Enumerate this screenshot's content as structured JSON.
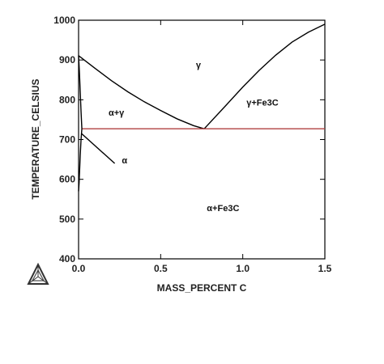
{
  "chart_data": {
    "type": "line",
    "xlabel": "MASS_PERCENT C",
    "ylabel": "TEMPERATURE_CELSIUS",
    "xlim": [
      0,
      1.5
    ],
    "ylim": [
      400,
      1000
    ],
    "x_ticks": [
      0.0,
      0.5,
      1.0,
      1.5
    ],
    "x_tick_labels": [
      "0.0",
      "0.5",
      "1.0",
      "1.5"
    ],
    "y_ticks": [
      400,
      500,
      600,
      700,
      800,
      900,
      1000
    ],
    "y_tick_labels": [
      "400",
      "500",
      "600",
      "700",
      "800",
      "900",
      "1000"
    ],
    "grid": false,
    "series": [
      {
        "color": "#000000",
        "x": [
          0.0,
          0.1,
          0.2,
          0.3,
          0.4,
          0.5,
          0.6,
          0.7,
          0.765
        ],
        "y": [
          911,
          879,
          848,
          820,
          795,
          773,
          752,
          735,
          727
        ]
      },
      {
        "color": "#000000",
        "x": [
          0.765,
          0.9,
          1.0,
          1.1,
          1.2,
          1.3,
          1.4,
          1.5
        ],
        "y": [
          727,
          787,
          832,
          874,
          912,
          945,
          970,
          990
        ]
      },
      {
        "color": "#b04040",
        "x": [
          0.02,
          1.5
        ],
        "y": [
          727,
          727
        ]
      },
      {
        "color": "#000000",
        "x": [
          0.0,
          0.005,
          0.01,
          0.015,
          0.02
        ],
        "y": [
          911,
          870,
          820,
          770,
          727
        ]
      },
      {
        "color": "#000000",
        "x": [
          0.02,
          0.015,
          0.01,
          0.006,
          0.003,
          0.0
        ],
        "y": [
          727,
          700,
          660,
          620,
          590,
          570
        ]
      },
      {
        "color": "#000000",
        "x": [
          0.018,
          0.22
        ],
        "y": [
          715,
          640
        ]
      }
    ],
    "annotations": [
      {
        "text": "γ",
        "x": 0.73,
        "y": 880
      },
      {
        "text": "α+γ",
        "x": 0.23,
        "y": 760
      },
      {
        "text": "γ+Fe3C",
        "x": 1.12,
        "y": 785
      },
      {
        "text": "α",
        "x": 0.28,
        "y": 640
      },
      {
        "text": "α+Fe3C",
        "x": 0.88,
        "y": 520
      }
    ]
  }
}
